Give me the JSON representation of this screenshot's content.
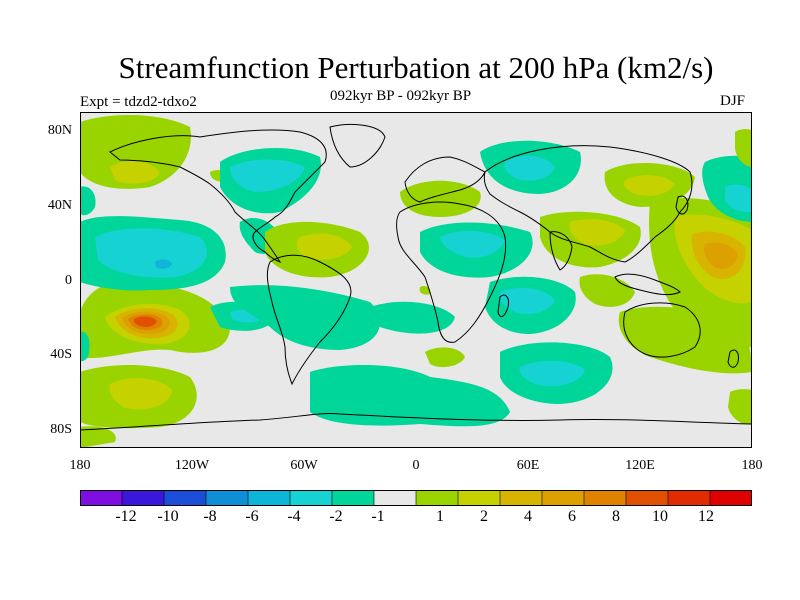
{
  "title": "Streamfunction Perturbation at 200 hPa (km2/s)",
  "expt_label": "Expt = tdzd2-tdxo2",
  "subtitle": "092kyr BP - 092kyr BP",
  "season": "DJF",
  "y_axis_labels": [
    "80N",
    "40N",
    "0",
    "40S",
    "80S"
  ],
  "x_axis_labels": [
    "180",
    "120W",
    "60W",
    "0",
    "60E",
    "120E",
    "180"
  ],
  "colorbar": {
    "colors": [
      "#7f0fe0",
      "#3a17d9",
      "#1b4ed6",
      "#0e8ed6",
      "#0db5d8",
      "#17d2d2",
      "#00d69a",
      "#e8e8e8",
      "#9ad400",
      "#c6d100",
      "#d8b300",
      "#dca000",
      "#df8200",
      "#e05000",
      "#e02c00",
      "#df0000"
    ],
    "labels": [
      "-12",
      "-10",
      "-8",
      "-6",
      "-4",
      "-2",
      "-1",
      "1",
      "2",
      "4",
      "6",
      "8",
      "10",
      "12"
    ]
  },
  "chart_data": {
    "type": "contour-map",
    "variable": "200 hPa streamfunction perturbation",
    "units": "km2/s",
    "lon_range": [
      -180,
      180
    ],
    "lat_range": [
      -90,
      90
    ],
    "levels": [
      -12,
      -10,
      -8,
      -6,
      -4,
      -2,
      -1,
      1,
      2,
      4,
      6,
      8,
      10,
      12
    ],
    "features": [
      {
        "lon": -140,
        "lat": -18,
        "value": 9,
        "sign": "positive"
      },
      {
        "lon": -150,
        "lat": 8,
        "value": -3,
        "sign": "negative"
      },
      {
        "lon": -110,
        "lat": 10,
        "value": -1.5,
        "sign": "negative"
      },
      {
        "lon": -55,
        "lat": 18,
        "value": 3,
        "sign": "positive"
      },
      {
        "lon": -165,
        "lat": 55,
        "value": 2,
        "sign": "positive"
      },
      {
        "lon": -80,
        "lat": 57,
        "value": -1.5,
        "sign": "negative"
      },
      {
        "lon": -170,
        "lat": -52,
        "value": 2,
        "sign": "positive"
      },
      {
        "lon": -25,
        "lat": -55,
        "value": -1.5,
        "sign": "negative"
      },
      {
        "lon": 60,
        "lat": 60,
        "value": -2,
        "sign": "negative"
      },
      {
        "lon": 25,
        "lat": 48,
        "value": 1.5,
        "sign": "positive"
      },
      {
        "lon": 90,
        "lat": 15,
        "value": 2,
        "sign": "positive"
      },
      {
        "lon": 125,
        "lat": 50,
        "value": 4,
        "sign": "positive"
      },
      {
        "lon": 160,
        "lat": 15,
        "value": 6,
        "sign": "positive"
      },
      {
        "lon": 30,
        "lat": 15,
        "value": -3,
        "sign": "negative"
      },
      {
        "lon": 75,
        "lat": -15,
        "value": -2,
        "sign": "negative"
      },
      {
        "lon": 65,
        "lat": -52,
        "value": -3,
        "sign": "negative"
      },
      {
        "lon": 115,
        "lat": -20,
        "value": 2,
        "sign": "positive"
      },
      {
        "lon": 170,
        "lat": -40,
        "value": 1.5,
        "sign": "positive"
      }
    ]
  }
}
